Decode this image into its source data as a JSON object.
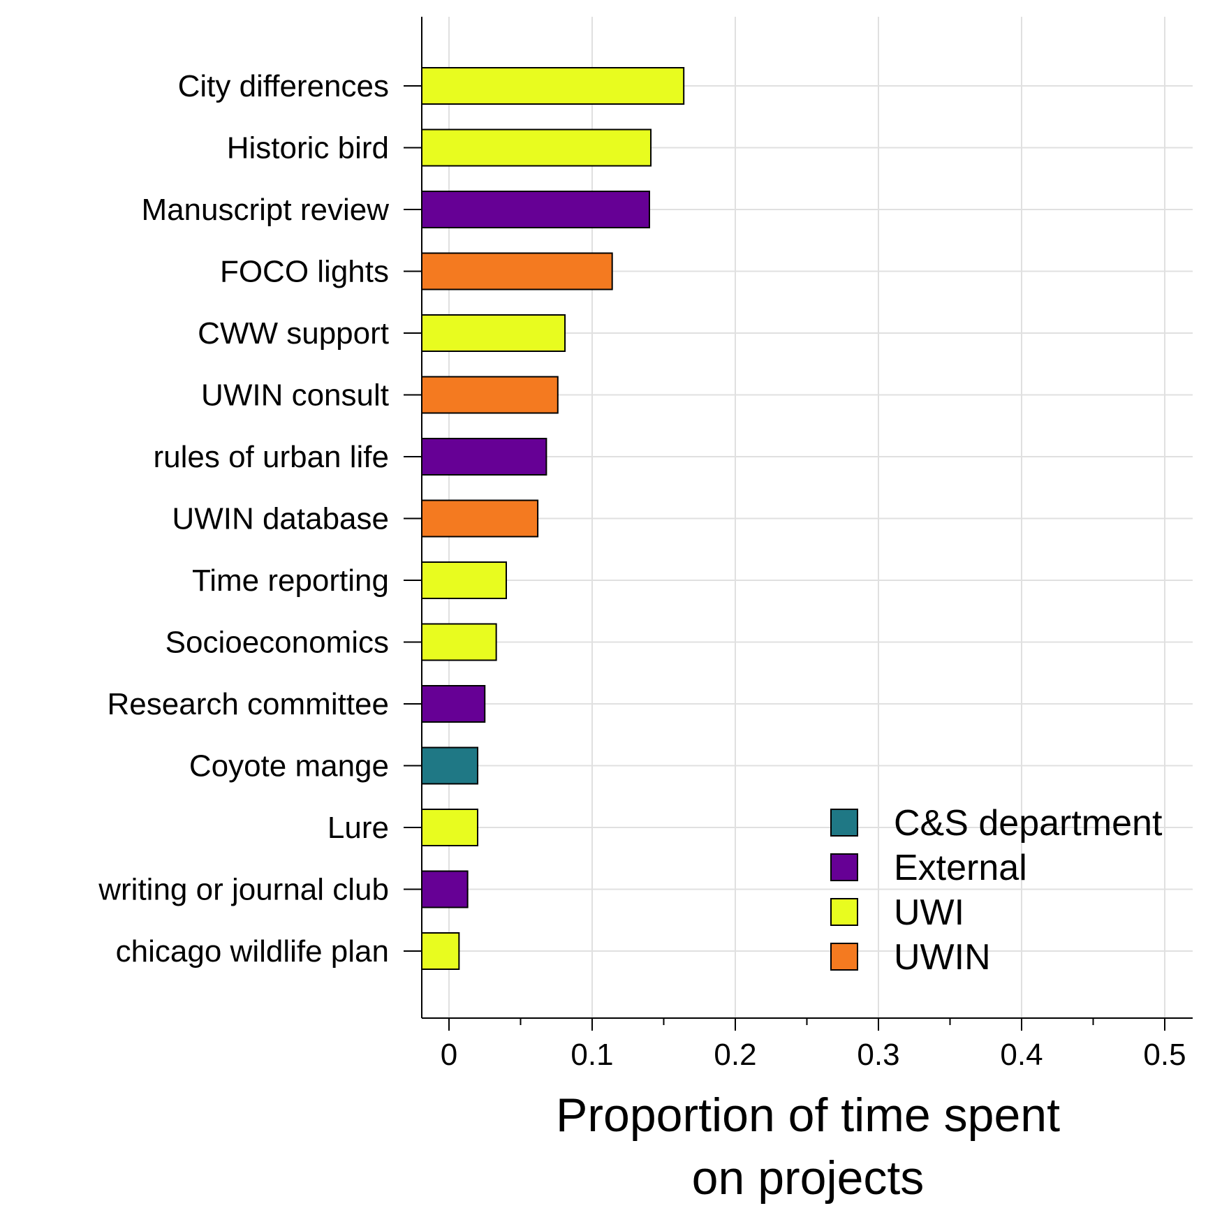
{
  "chart_data": {
    "type": "bar",
    "orientation": "horizontal",
    "categories": [
      "City differences",
      "Historic bird",
      "Manuscript review",
      "FOCO lights",
      "CWW support",
      "UWIN consult",
      "rules of urban life",
      "UWIN database",
      "Time reporting",
      "Socioeconomics",
      "Research committee",
      "Coyote mange",
      "Lure",
      "writing or journal club",
      "chicago wildlife plan"
    ],
    "values": [
      0.164,
      0.141,
      0.14,
      0.114,
      0.081,
      0.076,
      0.068,
      0.062,
      0.04,
      0.033,
      0.025,
      0.02,
      0.02,
      0.013,
      0.007
    ],
    "groups": [
      "UWI",
      "UWI",
      "External",
      "UWIN",
      "UWI",
      "UWIN",
      "External",
      "UWIN",
      "UWI",
      "UWI",
      "External",
      "C&S department",
      "UWI",
      "External",
      "UWI"
    ],
    "legend": [
      {
        "name": "C&S department",
        "color": "#1f7885"
      },
      {
        "name": "External",
        "color": "#660095"
      },
      {
        "name": "UWI",
        "color": "#e8fc1f"
      },
      {
        "name": "UWIN",
        "color": "#f47a20"
      }
    ],
    "legend_position": "bottom-right",
    "x_ticks": [
      "0",
      "0.1",
      "0.2",
      "0.3",
      "0.4",
      "0.5"
    ],
    "x_tick_values": [
      0,
      0.1,
      0.2,
      0.3,
      0.4,
      0.5
    ],
    "xlim": [
      -0.02,
      0.52
    ],
    "xlabel_lines": [
      "Proportion of time spent",
      "on projects"
    ],
    "ylabel": "",
    "title": "",
    "grid": true,
    "grid_color": "#e0e0e0"
  }
}
